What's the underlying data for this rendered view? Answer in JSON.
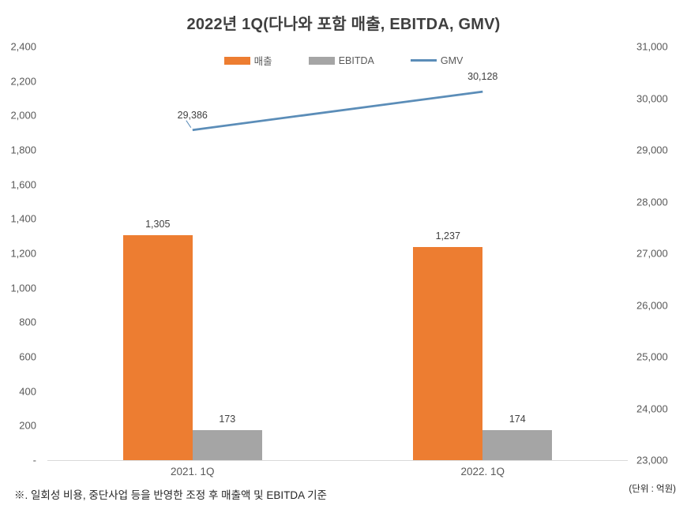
{
  "footnote": "※. 일회성 비용, 중단사업 등을 반영한 조정 후 매출액 및 EBITDA 기준",
  "unit_label": "(단위 : 억원)",
  "colors": {
    "revenue": "#ED7D31",
    "ebitda": "#A5A5A5",
    "gmv": "#5B8DB8",
    "axis_text": "#595959",
    "data_label_text": "#404040",
    "axis_line": "#D9D9D9",
    "title_text": "#3F3F3F"
  },
  "chart_data": {
    "type": "combo (grouped bar + line, dual axis)",
    "title": "2022년 1Q(다나와 포함 매출, EBITDA, GMV)",
    "categories": [
      "2021. 1Q",
      "2022. 1Q"
    ],
    "series": [
      {
        "name": "매출",
        "type": "bar",
        "axis": "left",
        "color": "#ED7D31",
        "values": [
          1305,
          1237
        ],
        "labels": [
          "1,305",
          "1,237"
        ]
      },
      {
        "name": "EBITDA",
        "type": "bar",
        "axis": "left",
        "color": "#A5A5A5",
        "values": [
          173,
          174
        ],
        "labels": [
          "173",
          "174"
        ]
      },
      {
        "name": "GMV",
        "type": "line",
        "axis": "right",
        "color": "#5B8DB8",
        "values": [
          29386,
          30128
        ],
        "labels": [
          "29,386",
          "30,128"
        ]
      }
    ],
    "left_axis": {
      "min": 0,
      "max": 2400,
      "step": 200,
      "tick_labels": [
        "-",
        "200",
        "400",
        "600",
        "800",
        "1,000",
        "1,200",
        "1,400",
        "1,600",
        "1,800",
        "2,000",
        "2,200",
        "2,400"
      ]
    },
    "right_axis": {
      "min": 23000,
      "max": 31000,
      "step": 1000,
      "tick_labels": [
        "23,000",
        "24,000",
        "25,000",
        "26,000",
        "27,000",
        "28,000",
        "29,000",
        "30,000",
        "31,000"
      ]
    },
    "legend_position": "top",
    "grid": false
  }
}
